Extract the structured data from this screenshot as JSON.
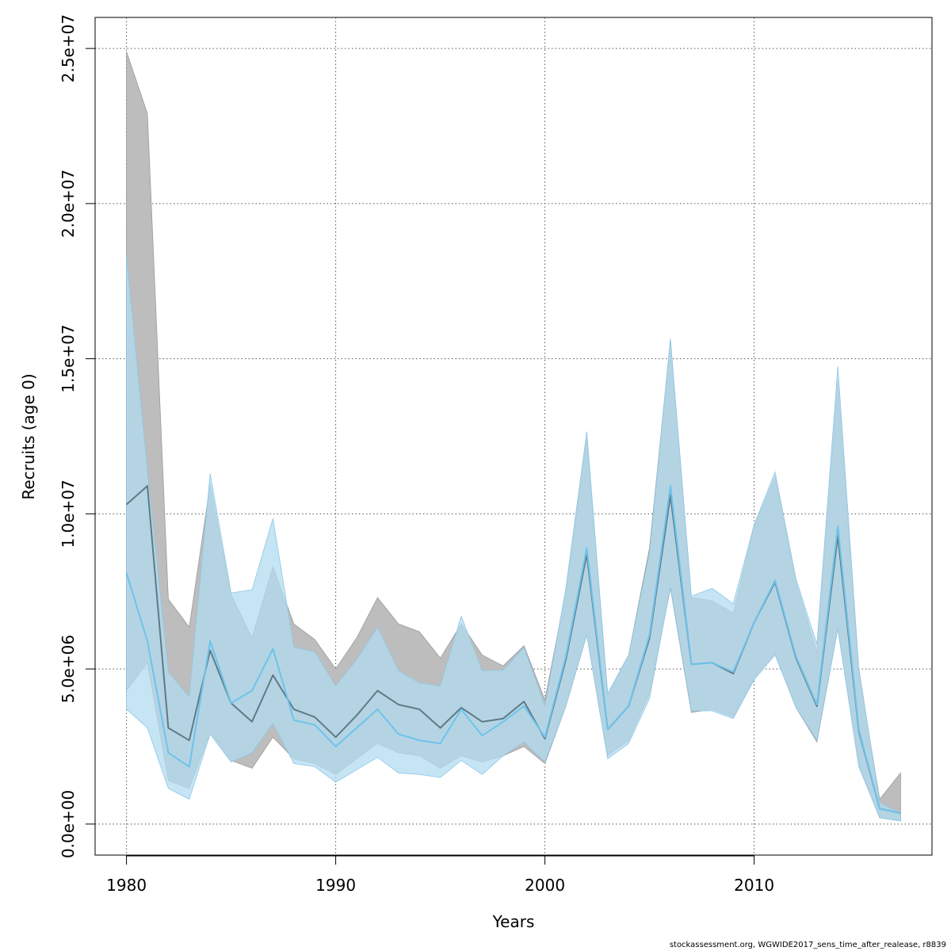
{
  "footer": "stockassessment.org, WGWIDE2017_sens_time_after_realease, r8839",
  "chart_data": {
    "type": "area",
    "title": "",
    "xlabel": "Years",
    "ylabel": "Recruits (age 0)",
    "xlim": [
      1978.5,
      2018.5
    ],
    "ylim": [
      -1000000,
      26000000
    ],
    "x_ticks": [
      1980,
      1990,
      2000,
      2010
    ],
    "x_tick_labels": [
      "1980",
      "1990",
      "2000",
      "2010"
    ],
    "y_ticks": [
      0,
      5000000,
      10000000,
      15000000,
      20000000,
      25000000
    ],
    "y_tick_labels": [
      "0.0e+00",
      "5.0e+06",
      "1.0e+07",
      "1.5e+07",
      "2.0e+07",
      "2.5e+07"
    ],
    "grid": true,
    "legend": "none",
    "x": [
      1980,
      1981,
      1982,
      1983,
      1984,
      1985,
      1986,
      1987,
      1988,
      1989,
      1990,
      1991,
      1992,
      1993,
      1994,
      1995,
      1996,
      1997,
      1998,
      1999,
      2000,
      2001,
      2002,
      2003,
      2004,
      2005,
      2006,
      2007,
      2008,
      2009,
      2010,
      2011,
      2012,
      2013,
      2014,
      2015,
      2016,
      2017
    ],
    "series": [
      {
        "color": "#5f7a86",
        "band_color": "#bdbdbd",
        "values": [
          10300000,
          10900000,
          3100000,
          2700000,
          5600000,
          3900000,
          3300000,
          4800000,
          3700000,
          3450000,
          2800000,
          3500000,
          4300000,
          3850000,
          3700000,
          3100000,
          3750000,
          3300000,
          3400000,
          3950000,
          2750000,
          5300000,
          8700000,
          3050000,
          3800000,
          6000000,
          10600000,
          5150000,
          5200000,
          4850000,
          6500000,
          7800000,
          5350000,
          3800000,
          9300000,
          3000000,
          500000,
          350000
        ],
        "lower": [
          4300000,
          5200000,
          1400000,
          1150000,
          2950000,
          2050000,
          1800000,
          2800000,
          2100000,
          1950000,
          1600000,
          2100000,
          2600000,
          2300000,
          2200000,
          1800000,
          2200000,
          2000000,
          2200000,
          2500000,
          1950000,
          3800000,
          6100000,
          2200000,
          2700000,
          4200000,
          7600000,
          3600000,
          3700000,
          3450000,
          4700000,
          5500000,
          3750000,
          2650000,
          6300000,
          1900000,
          200000,
          100000
        ],
        "upper": [
          24900000,
          22900000,
          7250000,
          6350000,
          10950000,
          7400000,
          6000000,
          8300000,
          6450000,
          5950000,
          5000000,
          6000000,
          7300000,
          6450000,
          6200000,
          5350000,
          6450000,
          5450000,
          5100000,
          5750000,
          4000000,
          7500000,
          12450000,
          4200000,
          5450000,
          8900000,
          15600000,
          7300000,
          7200000,
          6800000,
          9600000,
          11200000,
          7800000,
          5550000,
          14300000,
          4900000,
          800000,
          1650000
        ]
      },
      {
        "color": "#6ec3ea",
        "band_color": "#b2dcf2",
        "values": [
          8100000,
          5900000,
          2300000,
          1850000,
          5900000,
          3900000,
          4300000,
          5650000,
          3350000,
          3200000,
          2500000,
          3100000,
          3700000,
          2900000,
          2700000,
          2600000,
          3700000,
          2850000,
          3300000,
          3800000,
          2800000,
          5400000,
          8900000,
          3050000,
          3800000,
          6100000,
          10900000,
          5150000,
          5200000,
          4900000,
          6500000,
          7850000,
          5400000,
          3850000,
          9600000,
          3050000,
          500000,
          350000
        ],
        "lower": [
          3700000,
          3100000,
          1150000,
          800000,
          2900000,
          2000000,
          2300000,
          3250000,
          1950000,
          1850000,
          1350000,
          1750000,
          2150000,
          1650000,
          1600000,
          1500000,
          2050000,
          1600000,
          2200000,
          2650000,
          2000000,
          3800000,
          6100000,
          2100000,
          2600000,
          4050000,
          7650000,
          3650000,
          3650000,
          3400000,
          4650000,
          5450000,
          3750000,
          2700000,
          6300000,
          1850000,
          200000,
          100000
        ],
        "upper": [
          18300000,
          11400000,
          4900000,
          4100000,
          11300000,
          7450000,
          7550000,
          9850000,
          5700000,
          5550000,
          4450000,
          5300000,
          6350000,
          4950000,
          4550000,
          4450000,
          6700000,
          4950000,
          4950000,
          5700000,
          3800000,
          7600000,
          12650000,
          4200000,
          5450000,
          8750000,
          15650000,
          7350000,
          7600000,
          7100000,
          9650000,
          11350000,
          7900000,
          5800000,
          14750000,
          5050000,
          700000,
          350000
        ]
      }
    ]
  }
}
